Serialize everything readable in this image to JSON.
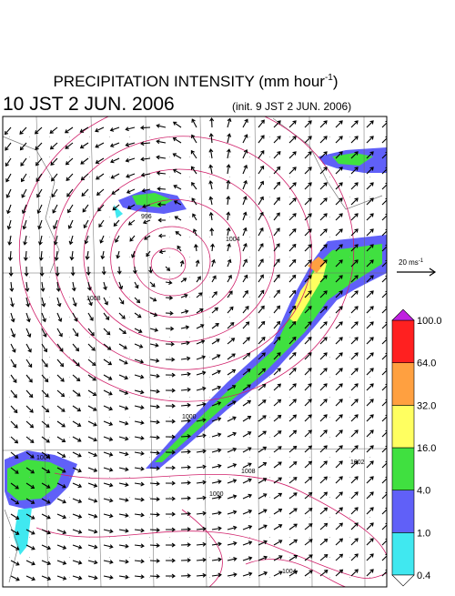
{
  "header": {
    "title": {
      "text": "PRECIPITATION INTENSITY (mm hour",
      "superscript": "-1",
      "suffix": ")"
    },
    "valid_time": "10 JST 2 JUN. 2006",
    "init_time": "(init. 9 JST 2 JUN. 2006)"
  },
  "wind_reference": {
    "text": "20 ms",
    "superscript": "-1"
  },
  "legend": {
    "colors": [
      "#40e8f0",
      "#6060f8",
      "#40e040",
      "#ffff60",
      "#ffa040",
      "#ff2020"
    ],
    "over_color": "#c020e0",
    "under_color": "#ffffff",
    "labels": [
      "0.4",
      "1.0",
      "4.0",
      "16.0",
      "32.0",
      "64.0",
      "100.0"
    ]
  },
  "contour_labels": [
    "996",
    "1000",
    "1004",
    "1008",
    "1002",
    "1004",
    "1000",
    "1008",
    "1004"
  ]
}
